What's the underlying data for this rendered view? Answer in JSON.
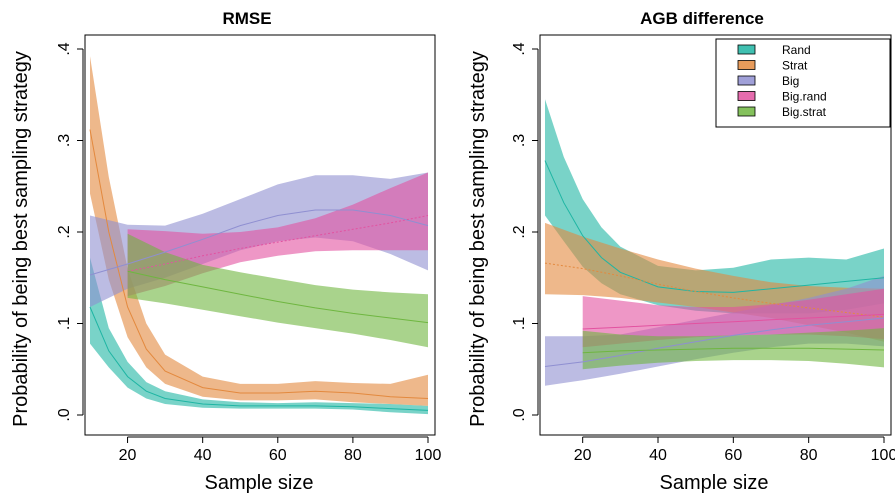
{
  "chart_data": [
    {
      "type": "area",
      "title": "RMSE",
      "xlabel": "Sample size",
      "ylabel": "Probability of being best sampling strategy",
      "xlim": [
        10,
        100
      ],
      "ylim": [
        0,
        0.4
      ],
      "xticks": [
        20,
        40,
        60,
        80,
        100
      ],
      "xtick_labels": [
        "20",
        "40",
        "60",
        "80",
        "100"
      ],
      "yticks": [
        0,
        0.1,
        0.2,
        0.3,
        0.4
      ],
      "ytick_labels": [
        ".0",
        ".1",
        ".2",
        ".3",
        ".4"
      ],
      "grid": false,
      "legend": "none",
      "series": [
        {
          "name": "Rand",
          "color": "#1fb5a3",
          "line_style": "solid",
          "x": [
            10,
            15,
            20,
            25,
            30,
            40,
            50,
            60,
            70,
            80,
            90,
            100
          ],
          "mean": [
            0.118,
            0.07,
            0.042,
            0.026,
            0.018,
            0.012,
            0.01,
            0.01,
            0.01,
            0.009,
            0.007,
            0.005
          ],
          "lower": [
            0.078,
            0.052,
            0.03,
            0.018,
            0.012,
            0.008,
            0.007,
            0.007,
            0.007,
            0.006,
            0.003,
            0.001
          ],
          "upper": [
            0.172,
            0.095,
            0.058,
            0.036,
            0.026,
            0.017,
            0.014,
            0.013,
            0.014,
            0.013,
            0.012,
            0.01
          ]
        },
        {
          "name": "Strat",
          "color": "#e3893e",
          "line_style": "solid",
          "x": [
            10,
            15,
            20,
            25,
            30,
            40,
            50,
            60,
            70,
            80,
            90,
            100
          ],
          "mean": [
            0.312,
            0.2,
            0.118,
            0.072,
            0.048,
            0.03,
            0.024,
            0.024,
            0.026,
            0.024,
            0.02,
            0.018
          ],
          "lower": [
            0.242,
            0.148,
            0.085,
            0.052,
            0.034,
            0.02,
            0.016,
            0.016,
            0.017,
            0.014,
            0.012,
            0.01
          ],
          "upper": [
            0.392,
            0.26,
            0.16,
            0.1,
            0.066,
            0.042,
            0.034,
            0.034,
            0.037,
            0.035,
            0.034,
            0.044
          ]
        },
        {
          "name": "Big",
          "color": "#8f8fd1",
          "line_style": "solid",
          "x": [
            10,
            20,
            30,
            40,
            50,
            60,
            70,
            80,
            90,
            100
          ],
          "mean": [
            0.153,
            0.165,
            0.178,
            0.192,
            0.207,
            0.218,
            0.224,
            0.224,
            0.218,
            0.207
          ],
          "lower": [
            0.118,
            0.138,
            0.15,
            0.165,
            0.18,
            0.19,
            0.194,
            0.19,
            0.176,
            0.158
          ],
          "upper": [
            0.218,
            0.208,
            0.207,
            0.22,
            0.236,
            0.252,
            0.262,
            0.262,
            0.258,
            0.265
          ]
        },
        {
          "name": "Big.rand",
          "color": "#e252a0",
          "line_style": "dotted",
          "x": [
            20,
            30,
            40,
            50,
            60,
            70,
            80,
            90,
            100
          ],
          "mean": [
            0.157,
            0.165,
            0.174,
            0.182,
            0.189,
            0.196,
            0.203,
            0.21,
            0.218
          ],
          "lower": [
            0.13,
            0.141,
            0.155,
            0.167,
            0.174,
            0.179,
            0.18,
            0.18,
            0.18
          ],
          "upper": [
            0.203,
            0.201,
            0.198,
            0.2,
            0.205,
            0.215,
            0.23,
            0.248,
            0.265
          ]
        },
        {
          "name": "Big.strat",
          "color": "#6fb640",
          "line_style": "solid",
          "x": [
            20,
            30,
            40,
            50,
            60,
            70,
            80,
            90,
            100
          ],
          "mean": [
            0.157,
            0.148,
            0.14,
            0.132,
            0.124,
            0.117,
            0.111,
            0.106,
            0.101
          ],
          "lower": [
            0.128,
            0.122,
            0.115,
            0.108,
            0.101,
            0.095,
            0.089,
            0.082,
            0.074
          ],
          "upper": [
            0.198,
            0.178,
            0.164,
            0.156,
            0.149,
            0.142,
            0.137,
            0.134,
            0.132
          ]
        }
      ]
    },
    {
      "type": "area",
      "title": "AGB difference",
      "xlabel": "Sample size",
      "ylabel": "Probability of being best sampling strategy",
      "xlim": [
        10,
        100
      ],
      "ylim": [
        0,
        0.4
      ],
      "xticks": [
        20,
        40,
        60,
        80,
        100
      ],
      "xtick_labels": [
        "20",
        "40",
        "60",
        "80",
        "100"
      ],
      "yticks": [
        0,
        0.1,
        0.2,
        0.3,
        0.4
      ],
      "ytick_labels": [
        ".0",
        ".1",
        ".2",
        ".3",
        ".4"
      ],
      "grid": false,
      "legend": "top-right",
      "series": [
        {
          "name": "Rand",
          "color": "#1fb5a3",
          "line_style": "solid",
          "x": [
            10,
            15,
            20,
            25,
            30,
            40,
            50,
            60,
            70,
            80,
            90,
            100
          ],
          "mean": [
            0.278,
            0.232,
            0.196,
            0.172,
            0.156,
            0.14,
            0.135,
            0.134,
            0.138,
            0.142,
            0.146,
            0.15
          ],
          "lower": [
            0.218,
            0.19,
            0.162,
            0.144,
            0.132,
            0.12,
            0.114,
            0.111,
            0.111,
            0.111,
            0.115,
            0.122
          ],
          "upper": [
            0.345,
            0.282,
            0.236,
            0.205,
            0.184,
            0.163,
            0.158,
            0.161,
            0.17,
            0.172,
            0.17,
            0.182
          ]
        },
        {
          "name": "Strat",
          "color": "#e3893e",
          "line_style": "dotted",
          "x": [
            10,
            20,
            30,
            40,
            50,
            60,
            70,
            80,
            90,
            100
          ],
          "mean": [
            0.166,
            0.16,
            0.152,
            0.143,
            0.135,
            0.128,
            0.122,
            0.117,
            0.112,
            0.107
          ],
          "lower": [
            0.132,
            0.131,
            0.128,
            0.123,
            0.118,
            0.112,
            0.106,
            0.098,
            0.09,
            0.08
          ],
          "upper": [
            0.21,
            0.195,
            0.182,
            0.17,
            0.16,
            0.152,
            0.145,
            0.141,
            0.139,
            0.138
          ]
        },
        {
          "name": "Big",
          "color": "#8f8fd1",
          "line_style": "solid",
          "x": [
            10,
            20,
            30,
            40,
            50,
            60,
            70,
            80,
            90,
            100
          ],
          "mean": [
            0.053,
            0.058,
            0.065,
            0.073,
            0.08,
            0.087,
            0.093,
            0.098,
            0.102,
            0.106
          ],
          "lower": [
            0.032,
            0.038,
            0.045,
            0.053,
            0.061,
            0.068,
            0.074,
            0.078,
            0.078,
            0.075
          ],
          "upper": [
            0.086,
            0.086,
            0.088,
            0.096,
            0.104,
            0.112,
            0.12,
            0.128,
            0.138,
            0.152
          ]
        },
        {
          "name": "Big.rand",
          "color": "#e252a0",
          "line_style": "solid",
          "x": [
            20,
            30,
            40,
            50,
            60,
            70,
            80,
            90,
            100
          ],
          "mean": [
            0.094,
            0.096,
            0.098,
            0.1,
            0.102,
            0.104,
            0.106,
            0.108,
            0.11
          ],
          "lower": [
            0.074,
            0.078,
            0.082,
            0.085,
            0.087,
            0.088,
            0.088,
            0.086,
            0.083
          ],
          "upper": [
            0.13,
            0.125,
            0.12,
            0.118,
            0.118,
            0.121,
            0.126,
            0.132,
            0.138
          ]
        },
        {
          "name": "Big.strat",
          "color": "#6fb640",
          "line_style": "solid",
          "x": [
            20,
            30,
            40,
            50,
            60,
            70,
            80,
            90,
            100
          ],
          "mean": [
            0.068,
            0.07,
            0.071,
            0.072,
            0.073,
            0.073,
            0.073,
            0.072,
            0.071
          ],
          "lower": [
            0.05,
            0.054,
            0.057,
            0.059,
            0.06,
            0.06,
            0.059,
            0.056,
            0.052
          ],
          "upper": [
            0.092,
            0.088,
            0.086,
            0.086,
            0.087,
            0.088,
            0.09,
            0.092,
            0.095
          ]
        }
      ]
    }
  ]
}
